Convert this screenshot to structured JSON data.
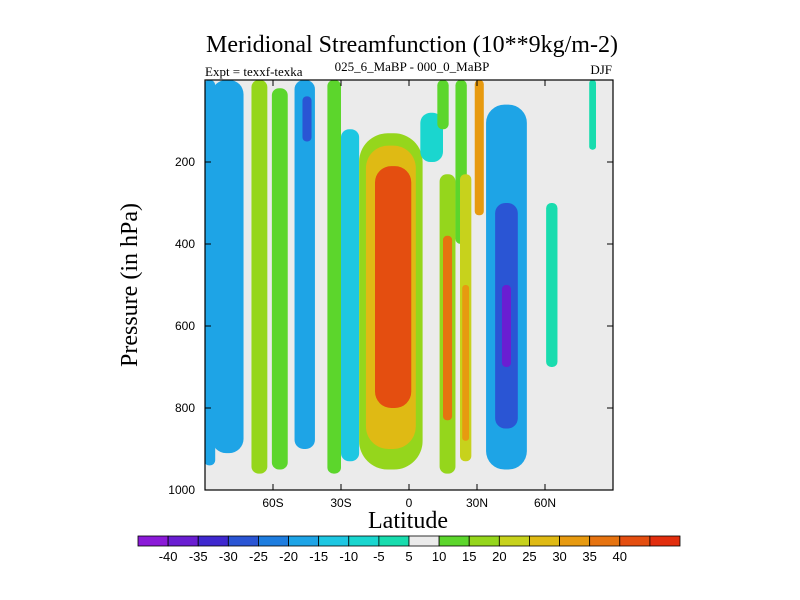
{
  "chart_data": {
    "type": "heatmap",
    "title": "Meridional Streamfunction (10**9kg/m-2)",
    "subtitle_left": "Expt = texxf-texka",
    "subtitle_center": "025_6_MaBP - 000_0_MaBP",
    "subtitle_right": "DJF",
    "xlabel": "Latitude",
    "ylabel": "Pressure (in hPa)",
    "xlim": [
      -90,
      90
    ],
    "ylim": [
      1000,
      0
    ],
    "x_ticks": [
      {
        "value": -60,
        "label": "60S"
      },
      {
        "value": -30,
        "label": "30S"
      },
      {
        "value": 0,
        "label": "0"
      },
      {
        "value": 30,
        "label": "30N"
      },
      {
        "value": 60,
        "label": "60N"
      }
    ],
    "y_ticks": [
      {
        "value": 200,
        "label": "200"
      },
      {
        "value": 400,
        "label": "400"
      },
      {
        "value": 600,
        "label": "600"
      },
      {
        "value": 800,
        "label": "800"
      },
      {
        "value": 1000,
        "label": "1000"
      }
    ],
    "colorbar": {
      "boundaries": [
        -40,
        -35,
        -30,
        -25,
        -20,
        -15,
        -10,
        -5,
        5,
        10,
        15,
        20,
        25,
        30,
        35,
        40
      ],
      "labels": [
        "-40",
        "-35",
        "-30",
        "-25",
        "-20",
        "-15",
        "-10",
        "-5",
        "5",
        "10",
        "15",
        "20",
        "25",
        "30",
        "35",
        "40"
      ],
      "colors": [
        "#8b1ad8",
        "#6a1ed2",
        "#3f28cf",
        "#2a55d4",
        "#1e7ddf",
        "#1ea4e6",
        "#1ec7e2",
        "#1ad6cf",
        "#18dcae",
        "#ebebeb",
        "#5cd62c",
        "#95d61c",
        "#c7d21c",
        "#dfba14",
        "#e79a10",
        "#e67310",
        "#e44e10",
        "#e22e0e"
      ]
    },
    "background_color": "#ebebeb",
    "bands": [
      {
        "lat": -88,
        "width": 5,
        "value": -18,
        "top": 0,
        "bottom": 940
      },
      {
        "lat": -80,
        "width": 14,
        "value": -20,
        "top": 0,
        "bottom": 910
      },
      {
        "lat": -66,
        "width": 7,
        "value": 15,
        "top": 0,
        "bottom": 960
      },
      {
        "lat": -57,
        "width": 7,
        "value": 10,
        "top": 20,
        "bottom": 950
      },
      {
        "lat": -46,
        "width": 9,
        "value": -20,
        "top": 0,
        "bottom": 900
      },
      {
        "lat": -45,
        "width": 4,
        "value": -30,
        "top": 40,
        "bottom": 150
      },
      {
        "lat": -33,
        "width": 6,
        "value": 10,
        "top": 0,
        "bottom": 960
      },
      {
        "lat": -26,
        "width": 8,
        "value": -15,
        "top": 120,
        "bottom": 930
      },
      {
        "lat": -8,
        "width": 28,
        "value": 15,
        "top": 130,
        "bottom": 950
      },
      {
        "lat": -8,
        "width": 22,
        "value": 25,
        "top": 160,
        "bottom": 900
      },
      {
        "lat": -7,
        "width": 16,
        "value": 40,
        "top": 210,
        "bottom": 800
      },
      {
        "lat": 10,
        "width": 10,
        "value": -10,
        "top": 80,
        "bottom": 200
      },
      {
        "lat": 15,
        "width": 5,
        "value": 10,
        "top": 0,
        "bottom": 120
      },
      {
        "lat": 17,
        "width": 7,
        "value": 15,
        "top": 230,
        "bottom": 960
      },
      {
        "lat": 17,
        "width": 4,
        "value": 35,
        "top": 380,
        "bottom": 830
      },
      {
        "lat": 23,
        "width": 5,
        "value": 10,
        "top": 0,
        "bottom": 400
      },
      {
        "lat": 25,
        "width": 5,
        "value": 20,
        "top": 230,
        "bottom": 930
      },
      {
        "lat": 25,
        "width": 3,
        "value": 30,
        "top": 500,
        "bottom": 880
      },
      {
        "lat": 31,
        "width": 4,
        "value": 30,
        "top": 0,
        "bottom": 330
      },
      {
        "lat": 43,
        "width": 18,
        "value": -20,
        "top": 60,
        "bottom": 950
      },
      {
        "lat": 43,
        "width": 10,
        "value": -30,
        "top": 300,
        "bottom": 850
      },
      {
        "lat": 43,
        "width": 4,
        "value": -40,
        "top": 500,
        "bottom": 700
      },
      {
        "lat": 63,
        "width": 5,
        "value": -5,
        "top": 300,
        "bottom": 700
      },
      {
        "lat": 81,
        "width": 3,
        "value": -5,
        "top": 0,
        "bottom": 170
      }
    ]
  }
}
